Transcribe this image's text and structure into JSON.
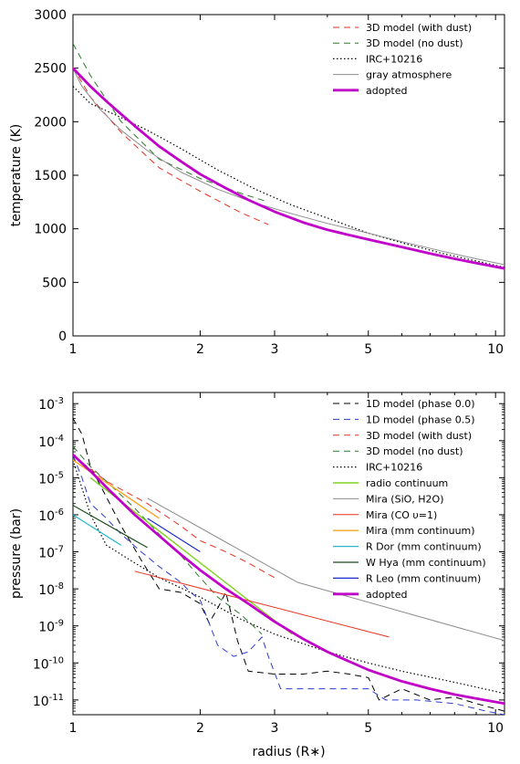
{
  "chart_data": [
    {
      "type": "line",
      "xlabel": "",
      "ylabel": "temperature (K)",
      "xscale": "log",
      "xlim": [
        1,
        10.5
      ],
      "ylim": [
        0,
        3000
      ],
      "xticks": [
        1,
        2,
        3,
        5,
        10
      ],
      "xtick_labels": [
        "1",
        "2",
        "3",
        "5",
        "10"
      ],
      "yticks": [
        0,
        500,
        1000,
        1500,
        2000,
        2500,
        3000
      ],
      "ytick_labels": [
        "0",
        "500",
        "1000",
        "1500",
        "2000",
        "2500",
        "3000"
      ],
      "grid": false,
      "legend_position": "top-right",
      "series": [
        {
          "name": "3D model (with dust)",
          "color": "#e8321e",
          "dash": "dashed",
          "width": 1,
          "x": [
            1.0,
            1.1,
            1.3,
            1.6,
            2.0,
            2.5,
            2.9
          ],
          "y": [
            2510,
            2230,
            1900,
            1570,
            1350,
            1150,
            1040
          ]
        },
        {
          "name": "3D model (no dust)",
          "color": "#2a7a2a",
          "dash": "dashed",
          "width": 1,
          "x": [
            1.0,
            1.1,
            1.3,
            1.6,
            2.0,
            2.5,
            2.9
          ],
          "y": [
            2730,
            2430,
            2000,
            1650,
            1470,
            1330,
            1250
          ]
        },
        {
          "name": "IRC+10216",
          "color": "#000000",
          "dash": "dotted",
          "width": 1.2,
          "x": [
            1.0,
            1.1,
            1.25,
            1.5,
            1.8,
            2.2,
            2.7,
            3.3,
            4.0,
            5.0,
            6.0,
            7.5,
            9.0,
            10.5
          ],
          "y": [
            2330,
            2170,
            2070,
            1920,
            1750,
            1550,
            1370,
            1220,
            1100,
            960,
            870,
            770,
            700,
            640
          ]
        },
        {
          "name": "gray atmosphere",
          "color": "#8c8c8c",
          "dash": "solid",
          "width": 1,
          "x": [
            1.0,
            1.05,
            1.15,
            1.3,
            1.5,
            1.8,
            2.2,
            2.7,
            3.3,
            4.0,
            5.0,
            6.0,
            7.5,
            9.0,
            10.5
          ],
          "y": [
            2500,
            2330,
            2130,
            1920,
            1730,
            1530,
            1370,
            1240,
            1140,
            1050,
            960,
            880,
            790,
            720,
            665
          ]
        },
        {
          "name": "adopted",
          "color": "#c000c8",
          "dash": "solid",
          "width": 2.8,
          "x": [
            1.0,
            1.1,
            1.2,
            1.4,
            1.6,
            1.8,
            2.0,
            2.3,
            2.6,
            3.0,
            3.5,
            4.0,
            5.0,
            6.0,
            7.0,
            8.0,
            9.0,
            10.5
          ],
          "y": [
            2500,
            2330,
            2190,
            1960,
            1770,
            1630,
            1510,
            1380,
            1270,
            1160,
            1060,
            990,
            900,
            830,
            770,
            720,
            680,
            630
          ]
        }
      ]
    },
    {
      "type": "line",
      "xlabel": "radius (R∗)",
      "ylabel": "pressure (bar)",
      "xscale": "log",
      "yscale": "log",
      "xlim": [
        1,
        10.5
      ],
      "ylim": [
        4e-12,
        0.002
      ],
      "xticks": [
        1,
        2,
        3,
        5,
        10
      ],
      "xtick_labels": [
        "1",
        "2",
        "3",
        "5",
        "10"
      ],
      "yticks_exp": [
        -3,
        -4,
        -5,
        -6,
        -7,
        -8,
        -9,
        -10,
        -11
      ],
      "ytick_labels": [
        "-3",
        "-4",
        "-5",
        "-6",
        "-7",
        "-8",
        "-9",
        "-10",
        "-11"
      ],
      "ytick_base": "10",
      "grid": false,
      "legend_position": "top-right",
      "series": [
        {
          "name": "1D model (phase 0.0)",
          "color": "#000000",
          "dash": "dashed",
          "width": 1,
          "x": [
            1.0,
            1.05,
            1.1,
            1.2,
            1.3,
            1.45,
            1.6,
            1.8,
            2.0,
            2.1,
            2.2,
            2.3,
            2.35,
            2.45,
            2.6,
            3.0,
            3.5,
            4.0,
            4.5,
            5.0,
            5.3,
            6.0,
            7.0,
            8.0,
            9.0,
            10.5
          ],
          "y": [
            0.0004,
            0.00015,
            2e-05,
            3e-06,
            5e-07,
            6e-08,
            1e-08,
            8e-09,
            4e-09,
            1.2e-09,
            3e-09,
            8e-09,
            3e-09,
            4e-10,
            6e-11,
            5e-11,
            5e-11,
            6e-11,
            5e-11,
            4e-11,
            1e-11,
            2e-11,
            1e-11,
            1.2e-11,
            8e-12,
            5e-12
          ]
        },
        {
          "name": "1D model (phase 0.5)",
          "color": "#2a3ad0",
          "dash": "dashed",
          "width": 1,
          "x": [
            1.0,
            1.05,
            1.1,
            1.2,
            1.3,
            1.45,
            1.6,
            1.8,
            1.9,
            2.0,
            2.2,
            2.4,
            2.6,
            2.8,
            2.9,
            3.1,
            3.5,
            4.0,
            5.0,
            5.5,
            6.5,
            8.0,
            9.5,
            10.5
          ],
          "y": [
            4e-05,
            1e-05,
            2e-06,
            8e-07,
            3e-07,
            1e-07,
            4e-08,
            1.5e-08,
            8e-09,
            5e-09,
            3e-10,
            1.5e-10,
            2e-10,
            5e-10,
            1.5e-10,
            2e-11,
            2e-11,
            2e-11,
            2e-11,
            1e-11,
            1e-11,
            8e-12,
            5e-12,
            4e-12
          ]
        },
        {
          "name": "3D model (with dust)",
          "color": "#e8321e",
          "dash": "dashed",
          "width": 1,
          "x": [
            1.0,
            1.2,
            1.5,
            1.8,
            2.0,
            2.3,
            2.6,
            3.0
          ],
          "y": [
            4e-05,
            8e-06,
            2e-06,
            5e-07,
            2e-07,
            1e-07,
            5e-08,
            2e-08
          ]
        },
        {
          "name": "3D model (no dust)",
          "color": "#2a7a2a",
          "dash": "dashed",
          "width": 1,
          "x": [
            1.0,
            1.1,
            1.2,
            1.4,
            1.6,
            1.8,
            2.0,
            2.2,
            2.5,
            2.8
          ],
          "y": [
            7e-05,
            2e-05,
            8e-06,
            1.5e-06,
            3e-07,
            8e-08,
            2e-08,
            6e-09,
            2e-09,
            6e-10
          ]
        },
        {
          "name": "IRC+10216",
          "color": "#000000",
          "dash": "dotted",
          "width": 1.2,
          "x": [
            1.0,
            1.1,
            1.2,
            1.4,
            1.6,
            2.0,
            2.5,
            3.0,
            4.0,
            5.0,
            6.0,
            8.0,
            10.5
          ],
          "y": [
            3e-05,
            1e-06,
            1.5e-07,
            5e-08,
            2e-08,
            6e-09,
            1.5e-09,
            6e-10,
            2e-10,
            1e-10,
            6e-11,
            3e-11,
            1.5e-11
          ]
        },
        {
          "name": "radio continuum",
          "color": "#7ed321",
          "dash": "solid",
          "width": 1.4,
          "x": [
            1.1,
            3.3
          ],
          "y": [
            1e-05,
            6e-10
          ]
        },
        {
          "name": "Mira (SiO, H2O)",
          "color": "#8c8c8c",
          "dash": "solid",
          "width": 1,
          "x": [
            1.5,
            3.4,
            10.5
          ],
          "y": [
            2.8e-06,
            1.5e-08,
            4e-10
          ]
        },
        {
          "name": "Mira (CO υ=1)",
          "color": "#e8321e",
          "dash": "solid",
          "width": 1,
          "x": [
            1.4,
            5.6
          ],
          "y": [
            3e-08,
            5e-10
          ]
        },
        {
          "name": "Mira (mm continuum)",
          "color": "#f5a623",
          "dash": "solid",
          "width": 1.4,
          "x": [
            1.0,
            1.6
          ],
          "y": [
            3e-05,
            8e-07
          ]
        },
        {
          "name": "R Dor (mm continuum)",
          "color": "#2ab7ca",
          "dash": "solid",
          "width": 1.2,
          "x": [
            1.0,
            1.3
          ],
          "y": [
            1e-06,
            1.5e-07
          ]
        },
        {
          "name": "W Hya (mm continuum)",
          "color": "#1a4a1a",
          "dash": "solid",
          "width": 1.2,
          "x": [
            1.0,
            1.5
          ],
          "y": [
            1.8e-06,
            1.3e-07
          ]
        },
        {
          "name": "R Leo (mm continuum)",
          "color": "#1f2acc",
          "dash": "solid",
          "width": 1.2,
          "x": [
            1.5,
            2.0
          ],
          "y": [
            8e-07,
            1e-07
          ]
        },
        {
          "name": "adopted",
          "color": "#c000c8",
          "dash": "solid",
          "width": 2.8,
          "x": [
            1.0,
            1.1,
            1.2,
            1.4,
            1.6,
            1.8,
            2.0,
            2.3,
            2.6,
            3.0,
            3.5,
            4.0,
            5.0,
            6.0,
            7.0,
            8.0,
            9.0,
            10.5
          ],
          "y": [
            4.2e-05,
            1.5e-05,
            5.5e-06,
            1e-06,
            2.7e-07,
            8.5e-08,
            3.2e-08,
            1e-08,
            4e-09,
            1.3e-09,
            4.5e-10,
            2e-10,
            6.5e-11,
            3.2e-11,
            2e-11,
            1.4e-11,
            1.1e-11,
            8e-12
          ]
        }
      ]
    }
  ]
}
